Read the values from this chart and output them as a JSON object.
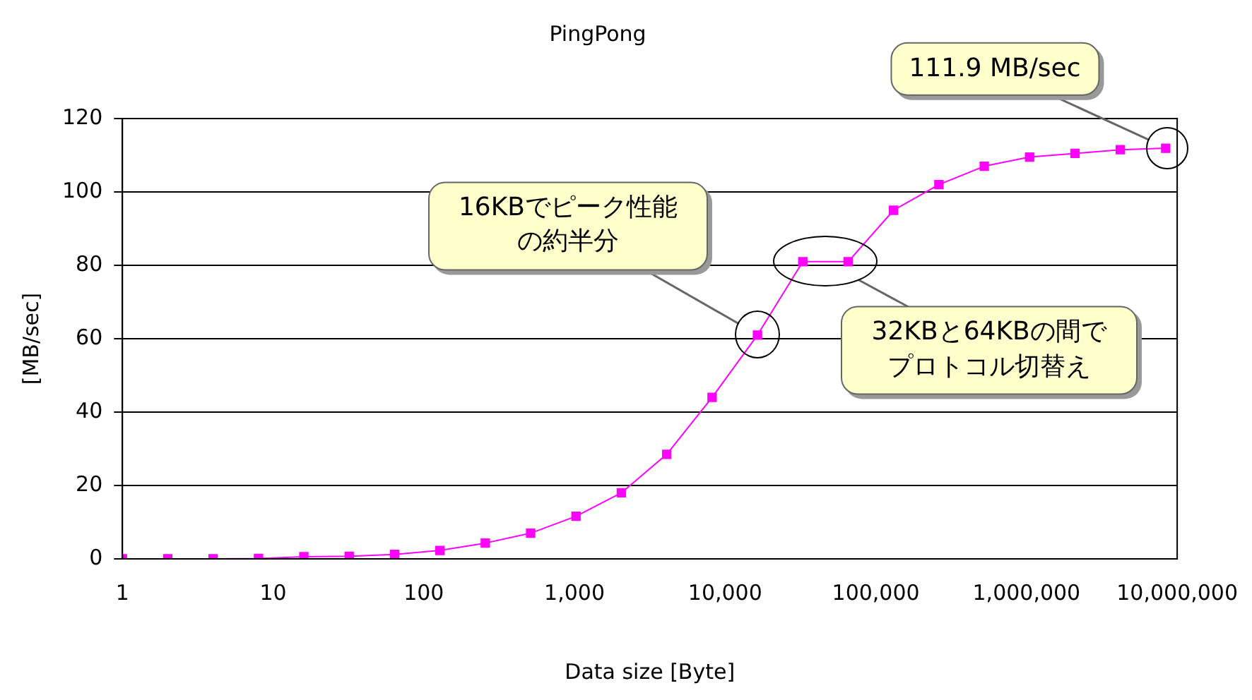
{
  "chart_data": {
    "type": "line",
    "title": "PingPong",
    "xlabel": "Data size [Byte]",
    "ylabel": "[MB/sec]",
    "x": [
      1,
      2,
      4,
      8,
      16,
      32,
      64,
      128,
      256,
      512,
      1024,
      2048,
      4096,
      8192,
      16384,
      32768,
      65536,
      131072,
      262144,
      524288,
      1048576,
      2097152,
      4194304,
      8388608
    ],
    "series": [
      {
        "color": "#ff00ff",
        "values": [
          0,
          0,
          0,
          0.1,
          0.6,
          0.7,
          1.2,
          2.3,
          4.3,
          7,
          11.6,
          18,
          28.5,
          44,
          61,
          81,
          81,
          95,
          102,
          107,
          109.5,
          110.5,
          111.5,
          111.9
        ]
      }
    ],
    "log": "x",
    "xlim": [
      1,
      10000000
    ],
    "xticks": [
      1,
      10,
      100,
      {
        "value": 1000,
        "label": "1,000"
      },
      {
        "value": 10000,
        "label": "10,000"
      },
      {
        "value": 100000,
        "label": "100,000"
      },
      {
        "value": 1000000,
        "label": "1,000,000"
      },
      {
        "value": 10000000,
        "label": "10,000,000"
      }
    ],
    "ylim": [
      0,
      120
    ],
    "yticks": [
      0,
      20,
      40,
      60,
      80,
      100,
      120
    ],
    "grid": "y",
    "marker": "square",
    "line_style": "solid",
    "legend": false,
    "annotations": [
      "111.9 MB/sec",
      "16KBでピーク性能の約半分",
      {
        "text": "32KBと64KBの間でプロトコル切替え",
        "x": 46000,
        "y": 81
      }
    ]
  }
}
